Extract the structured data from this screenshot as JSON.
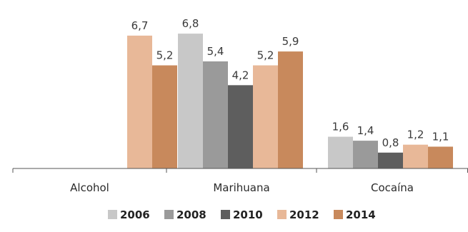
{
  "chart_data": {
    "type": "bar",
    "title": "",
    "xlabel": "",
    "ylabel": "",
    "categories": [
      "Alcohol",
      "Marihuana",
      "Cocaína"
    ],
    "series": [
      {
        "name": "2006",
        "color": "#c8c8c8",
        "values": [
          null,
          6.8,
          1.6
        ],
        "labels": [
          null,
          "6,8",
          "1,6"
        ]
      },
      {
        "name": "2008",
        "color": "#9a9a9a",
        "values": [
          null,
          5.4,
          1.4
        ],
        "labels": [
          null,
          "5,4",
          "1,4"
        ]
      },
      {
        "name": "2010",
        "color": "#5e5e5e",
        "values": [
          null,
          4.2,
          0.8
        ],
        "labels": [
          null,
          "4,2",
          "0,8"
        ]
      },
      {
        "name": "2012",
        "color": "#e8b898",
        "values": [
          6.7,
          5.2,
          1.2
        ],
        "labels": [
          "6,7",
          "5,2",
          "1,2"
        ]
      },
      {
        "name": "2014",
        "color": "#c8895c",
        "values": [
          5.2,
          5.9,
          1.1
        ],
        "labels": [
          "5,2",
          "5,9",
          "1,1"
        ]
      }
    ],
    "ylim": [
      0,
      7.2
    ],
    "grid": false,
    "legend_position": "bottom-center",
    "axis_color": "#555555"
  }
}
